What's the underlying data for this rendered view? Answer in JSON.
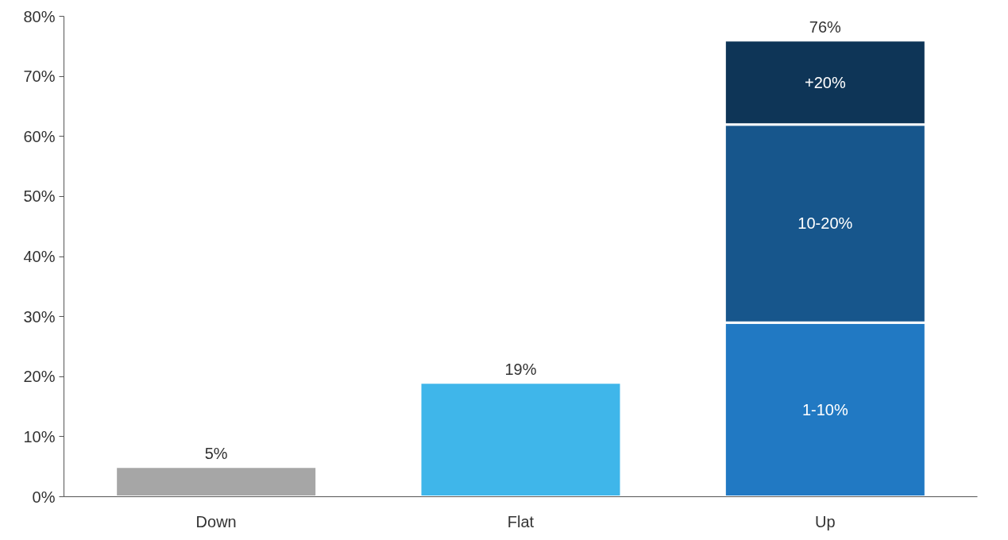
{
  "chart_data": {
    "type": "bar",
    "stacked": true,
    "categories": [
      "Down",
      "Flat",
      "Up"
    ],
    "series": [
      {
        "colors": [
          "#a6a6a6",
          "#3fb6ea",
          null
        ],
        "values": [
          5,
          19,
          null
        ]
      },
      {
        "name": "1-10%",
        "color": "#2179c3",
        "values": [
          null,
          null,
          29
        ]
      },
      {
        "name": "10-20%",
        "color": "#17568c",
        "values": [
          null,
          null,
          33
        ]
      },
      {
        "name": "+20%",
        "color": "#0e3557",
        "values": [
          null,
          null,
          14
        ]
      }
    ],
    "totals": [
      "5%",
      "19%",
      "76%"
    ],
    "ylim": [
      0,
      80
    ],
    "yticks": [
      {
        "value": 0,
        "label": "0%"
      },
      {
        "value": 10,
        "label": "10%"
      },
      {
        "value": 20,
        "label": "20%"
      },
      {
        "value": 30,
        "label": "30%"
      },
      {
        "value": 40,
        "label": "40%"
      },
      {
        "value": 50,
        "label": "50%"
      },
      {
        "value": 60,
        "label": "60%"
      },
      {
        "value": 70,
        "label": "70%"
      },
      {
        "value": 80,
        "label": "80%"
      }
    ]
  }
}
